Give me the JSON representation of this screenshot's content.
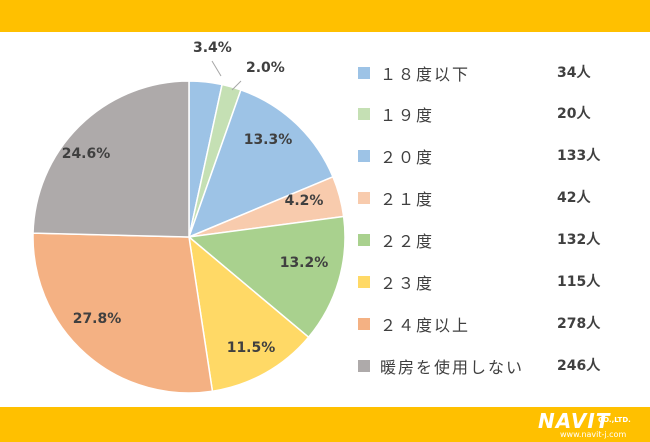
{
  "colors": {
    "banner": "#FFC000"
  },
  "logo": {
    "main": "NAVIT",
    "co": "CO.,LTD.",
    "url": "www.navit-j.com"
  },
  "chart_data": {
    "type": "pie",
    "start_angle_deg": 0,
    "direction": "clockwise",
    "slices": [
      {
        "label": "１８度以下",
        "count": "34人",
        "value": 34,
        "percent": "3.4%",
        "color": "#9DC3E6"
      },
      {
        "label": "１９度",
        "count": "20人",
        "value": 20,
        "percent": "2.0%",
        "color": "#C5E0B4"
      },
      {
        "label": "２０度",
        "count": "133人",
        "value": 133,
        "percent": "13.3%",
        "color": "#9DC3E6"
      },
      {
        "label": "２１度",
        "count": "42人",
        "value": 42,
        "percent": "4.2%",
        "color": "#F8CBAD"
      },
      {
        "label": "２２度",
        "count": "132人",
        "value": 132,
        "percent": "13.2%",
        "color": "#A9D18E"
      },
      {
        "label": "２３度",
        "count": "115人",
        "value": 115,
        "percent": "11.5%",
        "color": "#FFD966"
      },
      {
        "label": "２４度以上",
        "count": "278人",
        "value": 278,
        "percent": "27.8%",
        "color": "#F4B183"
      },
      {
        "label": "暖房を使用しない",
        "count": "246人",
        "value": 246,
        "percent": "24.6%",
        "color": "#AEAAAA"
      }
    ]
  }
}
